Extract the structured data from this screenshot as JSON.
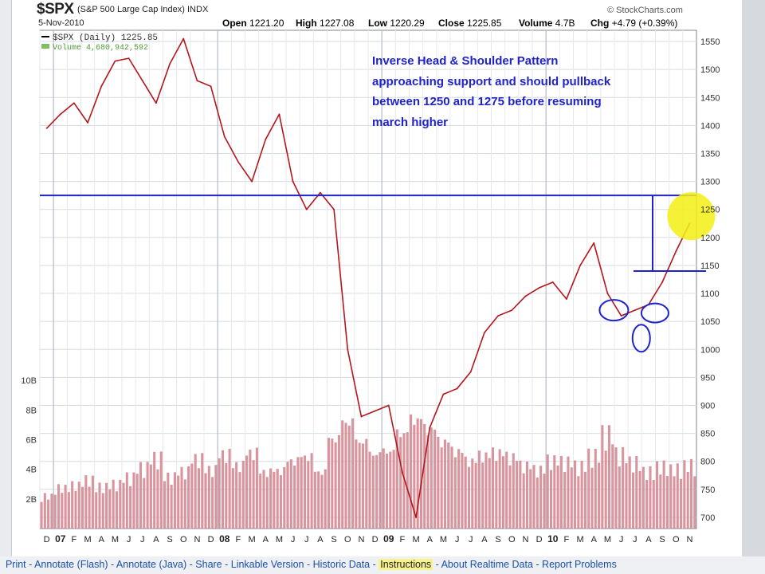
{
  "header": {
    "symbol": "$SPX",
    "index_name": "(S&P 500 Large Cap Index) INDX",
    "date": "5-Nov-2010",
    "credit": "© StockCharts.com",
    "open_label": "Open",
    "open": "1221.20",
    "high_label": "High",
    "high": "1227.08",
    "low_label": "Low",
    "low": "1220.29",
    "close_label": "Close",
    "close": "1225.85",
    "volume_label": "Volume",
    "volume": "4.7B",
    "chg_label": "Chg",
    "chg": "+4.79 (+0.39%)"
  },
  "legend": {
    "price": "$SPX (Daily) 1225.85",
    "volume": "Volume 4,680,942,592"
  },
  "annotation": {
    "lines": [
      "Inverse Head & Shoulder Pattern",
      "approaching support and should pullback",
      "between 1250 and 1275 before resuming",
      "march higher"
    ],
    "color": "#1f23c9"
  },
  "colors": {
    "price_line": "#b5161b",
    "volume_bar": "#d58a92",
    "annotation": "#1f23c9",
    "grid": "#d6dbe3",
    "highlight_circle": "#f3ee14"
  },
  "chart_data": {
    "type": "line",
    "title": "$SPX (S&P 500 Large Cap Index)",
    "xlabel": "",
    "ylabel": "",
    "ylim": [
      680,
      1570
    ],
    "y_ticks": [
      1550,
      1500,
      1450,
      1400,
      1350,
      1300,
      1250,
      1200,
      1150,
      1100,
      1050,
      1000,
      950,
      900,
      850,
      800,
      750,
      700
    ],
    "volume_ticks": [
      "10B",
      "8B",
      "6B",
      "4B",
      "2B"
    ],
    "volume_tick_values": [
      10,
      8,
      6,
      4,
      2
    ],
    "volume_ylim": [
      0,
      12
    ],
    "x_tick_labels": [
      "D",
      "07",
      "F",
      "M",
      "A",
      "M",
      "J",
      "J",
      "A",
      "S",
      "O",
      "N",
      "D",
      "08",
      "F",
      "M",
      "A",
      "M",
      "J",
      "J",
      "A",
      "S",
      "O",
      "N",
      "D",
      "09",
      "F",
      "M",
      "A",
      "M",
      "J",
      "J",
      "A",
      "S",
      "O",
      "N",
      "D",
      "10",
      "F",
      "M",
      "A",
      "M",
      "J",
      "J",
      "A",
      "S",
      "O",
      "N"
    ],
    "x_start": "2006-12",
    "grid": true,
    "series": [
      {
        "name": "$SPX (Daily)",
        "x": [
          "2006-12",
          "2007-01",
          "2007-02",
          "2007-03",
          "2007-04",
          "2007-05",
          "2007-06",
          "2007-07",
          "2007-08",
          "2007-09",
          "2007-10",
          "2007-11",
          "2007-12",
          "2008-01",
          "2008-02",
          "2008-03",
          "2008-04",
          "2008-05",
          "2008-06",
          "2008-07",
          "2008-08",
          "2008-09",
          "2008-10",
          "2008-11",
          "2008-12",
          "2009-01",
          "2009-02",
          "2009-03",
          "2009-04",
          "2009-05",
          "2009-06",
          "2009-07",
          "2009-08",
          "2009-09",
          "2009-10",
          "2009-11",
          "2009-12",
          "2010-01",
          "2010-02",
          "2010-03",
          "2010-04",
          "2010-05",
          "2010-06",
          "2010-07",
          "2010-08",
          "2010-09",
          "2010-10",
          "2010-11"
        ],
        "values": [
          1395,
          1420,
          1440,
          1405,
          1470,
          1515,
          1520,
          1480,
          1440,
          1510,
          1555,
          1480,
          1470,
          1380,
          1335,
          1300,
          1375,
          1420,
          1300,
          1250,
          1280,
          1250,
          1000,
          880,
          890,
          900,
          780,
          700,
          860,
          920,
          930,
          960,
          1030,
          1060,
          1070,
          1095,
          1110,
          1120,
          1090,
          1150,
          1190,
          1100,
          1060,
          1070,
          1080,
          1120,
          1175,
          1225
        ]
      }
    ],
    "volume": {
      "name": "Volume",
      "unit": "B",
      "values": [
        2.4,
        3.0,
        3.2,
        3.6,
        3.1,
        3.3,
        3.8,
        4.5,
        5.2,
        3.8,
        4.2,
        5.1,
        4.3,
        5.4,
        4.6,
        5.5,
        4.1,
        4.2,
        4.9,
        5.2,
        4.1,
        6.5,
        7.7,
        6.3,
        5.4,
        5.6,
        6.9,
        7.9,
        7.2,
        6.3,
        5.6,
        4.9,
        5.3,
        5.5,
        5.2,
        4.6,
        4.3,
        5.0,
        4.9,
        4.6,
        5.4,
        7.0,
        5.5,
        4.9,
        4.2,
        4.6,
        4.4,
        4.7
      ]
    },
    "annotations": {
      "horizontal_lines": [
        1275,
        1140
      ],
      "head_circles": [
        {
          "month": "2010-05",
          "value": 1070
        },
        {
          "month": "2010-07",
          "value": 1020
        },
        {
          "month": "2010-08",
          "value": 1065
        }
      ],
      "highlight": {
        "month": "2010-11",
        "value": 1238
      }
    }
  },
  "footer": {
    "links": [
      "Print",
      "Annotate (Flash)",
      "Annotate (Java)",
      "Share",
      "Linkable Version",
      "Historic Data",
      "Instructions",
      "About Realtime Data",
      "Report Problems"
    ],
    "highlighted": "Instructions"
  }
}
